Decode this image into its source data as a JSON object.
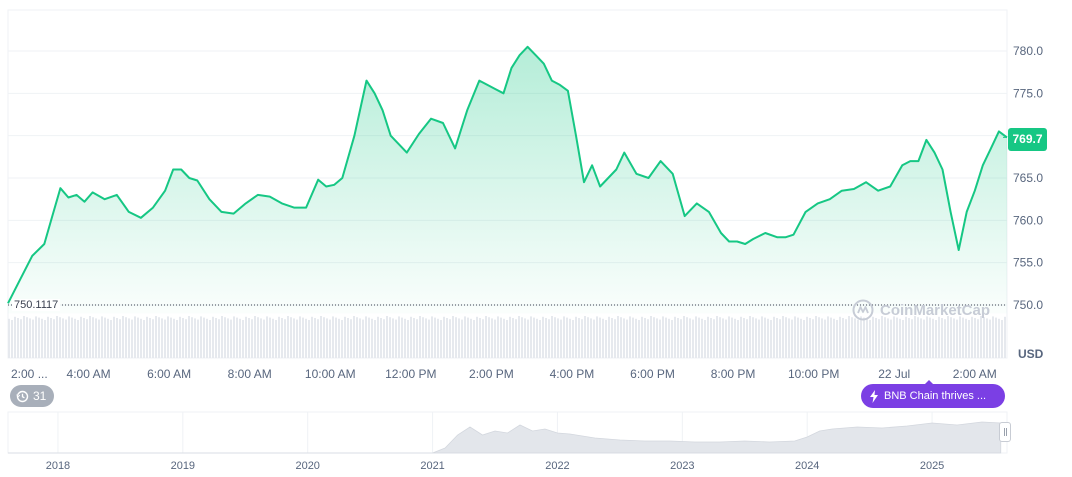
{
  "chart_data": {
    "type": "area",
    "currency_label": "USD",
    "base_label": "750.1117",
    "current_price_label": "769.7",
    "ylim": [
      749,
      783
    ],
    "y_ticks": [
      "780.0",
      "775.0",
      "770.0",
      "765.0",
      "760.0",
      "755.0",
      "750.0"
    ],
    "y_tick_values": [
      780,
      775,
      770,
      765,
      760,
      755,
      750
    ],
    "x_ticks": [
      "2:00 ...",
      "4:00 AM",
      "6:00 AM",
      "8:00 AM",
      "10:00 AM",
      "12:00 PM",
      "2:00 PM",
      "4:00 PM",
      "6:00 PM",
      "8:00 PM",
      "10:00 PM",
      "22 Jul",
      "2:00 AM"
    ],
    "x_tick_hours": [
      2,
      4,
      6,
      8,
      10,
      12,
      14,
      16,
      18,
      20,
      22,
      24,
      26
    ],
    "x_range_hours": [
      2,
      26.8
    ],
    "series": [
      {
        "x": [
          2.0,
          2.3,
          2.6,
          2.9,
          3.1,
          3.3,
          3.5,
          3.7,
          3.9,
          4.1,
          4.4,
          4.7,
          5.0,
          5.3,
          5.6,
          5.9,
          6.1,
          6.3,
          6.5,
          6.7,
          7.0,
          7.3,
          7.6,
          7.9,
          8.2,
          8.5,
          8.8,
          9.1,
          9.4,
          9.7,
          9.9,
          10.1,
          10.3,
          10.6,
          10.9,
          11.1,
          11.3,
          11.5,
          11.7,
          11.9,
          12.2,
          12.5,
          12.8,
          13.1,
          13.4,
          13.7,
          13.9,
          14.1,
          14.3,
          14.5,
          14.7,
          14.9,
          15.1,
          15.3,
          15.5,
          15.7,
          15.9,
          16.1,
          16.3,
          16.5,
          16.7,
          16.9,
          17.1,
          17.3,
          17.6,
          17.9,
          18.2,
          18.5,
          18.8,
          19.1,
          19.4,
          19.7,
          19.9,
          20.1,
          20.3,
          20.5,
          20.8,
          21.1,
          21.3,
          21.5,
          21.8,
          22.1,
          22.4,
          22.7,
          23.0,
          23.3,
          23.6,
          23.9,
          24.2,
          24.4,
          24.6,
          24.8,
          25.0,
          25.2,
          25.4,
          25.6,
          25.8,
          26.0,
          26.2,
          26.4,
          26.6,
          26.8
        ],
        "values": [
          750.2,
          753.0,
          755.8,
          757.2,
          760.5,
          763.8,
          762.7,
          763.0,
          762.2,
          763.3,
          762.5,
          763.0,
          761.0,
          760.3,
          761.5,
          763.5,
          766.0,
          766.0,
          765.0,
          764.7,
          762.5,
          761.0,
          760.8,
          762.0,
          763.0,
          762.8,
          762.0,
          761.5,
          761.5,
          764.8,
          764.0,
          764.2,
          765.0,
          770.0,
          776.5,
          775.0,
          773.0,
          770.0,
          769.0,
          768.0,
          770.2,
          772.0,
          771.5,
          768.5,
          773.0,
          776.5,
          776.0,
          775.5,
          775.0,
          778.0,
          779.5,
          780.5,
          779.5,
          778.5,
          776.5,
          776.0,
          775.3,
          770.0,
          764.5,
          766.5,
          764.0,
          765.0,
          766.0,
          768.0,
          765.5,
          765.0,
          767.0,
          765.5,
          760.5,
          762.0,
          761.0,
          758.5,
          757.5,
          757.5,
          757.2,
          757.8,
          758.5,
          758.0,
          758.0,
          758.3,
          761.0,
          762.0,
          762.5,
          763.5,
          763.7,
          764.5,
          763.5,
          764.0,
          766.5,
          767.0,
          767.0,
          769.5,
          768.0,
          766.0,
          761.0,
          756.5,
          761.0,
          763.5,
          766.5,
          768.5,
          770.5,
          769.8
        ]
      }
    ],
    "volume_note": "",
    "overview_years": [
      "2018",
      "2019",
      "2020",
      "2021",
      "2022",
      "2023",
      "2024",
      "2025"
    ],
    "overview_start_year": 2017.6,
    "overview_end_year": 2025.6,
    "overview_x": [
      2017.6,
      2018.0,
      2018.5,
      2019.0,
      2019.5,
      2020.0,
      2020.5,
      2021.0,
      2021.1,
      2021.2,
      2021.3,
      2021.4,
      2021.5,
      2021.6,
      2021.7,
      2021.8,
      2021.9,
      2022.0,
      2022.1,
      2022.2,
      2022.3,
      2022.5,
      2022.7,
      2022.9,
      2023.1,
      2023.3,
      2023.5,
      2023.7,
      2023.9,
      2024.0,
      2024.1,
      2024.2,
      2024.4,
      2024.6,
      2024.8,
      2025.0,
      2025.2,
      2025.4,
      2025.55
    ],
    "overview_values": [
      0,
      0,
      0,
      0,
      0,
      0,
      0,
      0,
      5,
      18,
      26,
      18,
      22,
      20,
      28,
      22,
      24,
      20,
      19,
      17,
      15,
      13,
      12,
      12,
      11,
      11,
      12,
      11,
      12,
      16,
      22,
      24,
      26,
      25,
      27,
      30,
      28,
      31,
      30
    ]
  },
  "ui": {
    "watermark_text": "CoinMarketCap",
    "events_count": "31",
    "news_text": "BNB Chain thrives ...",
    "accent_color": "#16c784",
    "news_color": "#7b3fe4"
  }
}
